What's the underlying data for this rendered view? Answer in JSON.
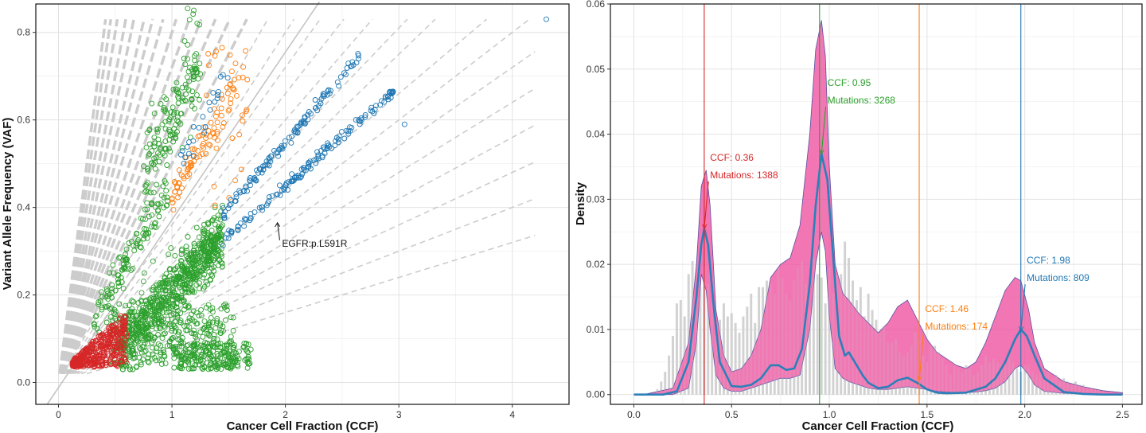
{
  "colors": {
    "clone_red": "#d62728",
    "clone_green": "#2ca02c",
    "clone_orange": "#ff7f0e",
    "clone_blue": "#1f77b4",
    "density_fill": "#ee4f9f",
    "density_line": "#2c7fb8",
    "histogram": "#c8c8c8",
    "guide_lines": "#cccccc"
  },
  "chart_data": [
    {
      "type": "scatter",
      "xlabel": "Cancer Cell Fraction (CCF)",
      "ylabel": "Variant Allele Frequency (VAF)",
      "xlim": [
        -0.2,
        4.5
      ],
      "ylim": [
        -0.05,
        0.865
      ],
      "x_ticks": [
        0,
        1,
        2,
        3,
        4
      ],
      "y_ticks": [
        0.0,
        0.2,
        0.4,
        0.6,
        0.8
      ],
      "x_tick_labels": [
        "0",
        "1",
        "2",
        "3",
        "4"
      ],
      "y_tick_labels": [
        "0.0",
        "0.2",
        "0.4",
        "0.6",
        "0.8"
      ],
      "grid": true,
      "identity_line": {
        "x": [
          -0.1,
          2.3
        ],
        "y": [
          -0.05,
          0.87
        ]
      },
      "guide_line_slopes": [
        0.08,
        0.1,
        0.12,
        0.14,
        0.16,
        0.18,
        0.2,
        0.22,
        0.25,
        0.27,
        0.3,
        0.33,
        0.36,
        0.4,
        0.45,
        0.5,
        0.55,
        0.6,
        0.66,
        0.72,
        0.8,
        0.9,
        1.0,
        1.1,
        1.25,
        1.4,
        1.6,
        1.8,
        2.0
      ],
      "clusters": [
        {
          "color": "clone_red",
          "ccf_range": [
            0.1,
            0.6
          ],
          "vaf_range": [
            0.03,
            0.15
          ]
        },
        {
          "color": "clone_green",
          "ccf_range": [
            0.4,
            1.7
          ],
          "vaf_range": [
            0.03,
            0.75
          ]
        },
        {
          "color": "clone_orange",
          "ccf_range": [
            0.9,
            1.6
          ],
          "vaf_range": [
            0.25,
            0.77
          ]
        },
        {
          "color": "clone_blue",
          "ccf_range": [
            1.0,
            4.3
          ],
          "vaf_range": [
            0.3,
            0.83
          ]
        }
      ],
      "annotation": {
        "text": "EGFR:p.L591R",
        "x": 1.95,
        "y": 0.36
      }
    },
    {
      "type": "area",
      "xlabel": "Cancer Cell Fraction (CCF)",
      "ylabel": "Density",
      "xlim": [
        -0.12,
        2.6
      ],
      "ylim": [
        -0.0015,
        0.06
      ],
      "x_ticks": [
        0.0,
        0.5,
        1.0,
        1.5,
        2.0,
        2.5
      ],
      "y_ticks": [
        0.0,
        0.01,
        0.02,
        0.03,
        0.04,
        0.05,
        0.06
      ],
      "x_tick_labels": [
        "0.0",
        "0.5",
        "1.0",
        "1.5",
        "2.0",
        "2.5"
      ],
      "y_tick_labels": [
        "0.00",
        "0.01",
        "0.02",
        "0.03",
        "0.04",
        "0.05",
        "0.06"
      ],
      "grid": true,
      "density_upper": {
        "x": [
          0.05,
          0.2,
          0.28,
          0.32,
          0.345,
          0.37,
          0.39,
          0.42,
          0.46,
          0.5,
          0.55,
          0.6,
          0.65,
          0.7,
          0.75,
          0.8,
          0.85,
          0.9,
          0.93,
          0.96,
          0.98,
          1.0,
          1.03,
          1.07,
          1.1,
          1.15,
          1.2,
          1.25,
          1.3,
          1.35,
          1.4,
          1.45,
          1.5,
          1.55,
          1.6,
          1.65,
          1.7,
          1.75,
          1.8,
          1.85,
          1.9,
          1.95,
          1.98,
          2.02,
          2.05,
          2.1,
          2.2,
          2.3,
          2.4,
          2.5
        ],
        "y": [
          0.0,
          0.001,
          0.008,
          0.02,
          0.032,
          0.0345,
          0.029,
          0.013,
          0.006,
          0.0035,
          0.004,
          0.006,
          0.01,
          0.018,
          0.02,
          0.021,
          0.026,
          0.04,
          0.053,
          0.0575,
          0.052,
          0.035,
          0.02,
          0.0155,
          0.0145,
          0.0125,
          0.011,
          0.0095,
          0.011,
          0.0135,
          0.0145,
          0.0115,
          0.0085,
          0.0065,
          0.0055,
          0.0045,
          0.004,
          0.005,
          0.008,
          0.012,
          0.016,
          0.018,
          0.0175,
          0.013,
          0.008,
          0.004,
          0.002,
          0.0012,
          0.0006,
          0.0003
        ]
      },
      "density_lower": {
        "x": [
          0.05,
          0.2,
          0.28,
          0.32,
          0.345,
          0.37,
          0.39,
          0.42,
          0.46,
          0.5,
          0.55,
          0.6,
          0.65,
          0.7,
          0.75,
          0.8,
          0.85,
          0.9,
          0.93,
          0.96,
          0.98,
          1.0,
          1.03,
          1.07,
          1.1,
          1.15,
          1.2,
          1.25,
          1.3,
          1.35,
          1.4,
          1.45,
          1.5,
          1.55,
          1.6,
          1.65,
          1.7,
          1.75,
          1.8,
          1.85,
          1.9,
          1.95,
          1.98,
          2.02,
          2.05,
          2.1,
          2.2,
          2.3,
          2.4,
          2.5
        ],
        "y": [
          0.0,
          0.0,
          0.001,
          0.008,
          0.0185,
          0.016,
          0.01,
          0.003,
          0.001,
          0.0005,
          0.0005,
          0.001,
          0.0015,
          0.002,
          0.0025,
          0.0025,
          0.003,
          0.01,
          0.02,
          0.025,
          0.022,
          0.012,
          0.004,
          0.0025,
          0.002,
          0.0015,
          0.001,
          0.0008,
          0.0008,
          0.001,
          0.0012,
          0.001,
          0.0008,
          0.0005,
          0.0004,
          0.0003,
          0.0003,
          0.0004,
          0.0006,
          0.001,
          0.002,
          0.004,
          0.0045,
          0.003,
          0.0015,
          0.0005,
          0.0002,
          0.0001,
          0.0,
          0.0
        ]
      },
      "density_line": {
        "x": [
          0.0,
          0.15,
          0.22,
          0.28,
          0.32,
          0.345,
          0.36,
          0.38,
          0.41,
          0.44,
          0.5,
          0.55,
          0.6,
          0.65,
          0.7,
          0.74,
          0.78,
          0.82,
          0.86,
          0.9,
          0.93,
          0.96,
          0.99,
          1.02,
          1.05,
          1.08,
          1.1,
          1.13,
          1.17,
          1.2,
          1.25,
          1.3,
          1.35,
          1.4,
          1.45,
          1.5,
          1.55,
          1.6,
          1.7,
          1.8,
          1.85,
          1.9,
          1.95,
          1.98,
          2.01,
          2.05,
          2.1,
          2.2,
          2.3,
          2.4,
          2.5
        ],
        "y": [
          0.0,
          0.0,
          0.0005,
          0.005,
          0.015,
          0.023,
          0.0255,
          0.023,
          0.013,
          0.005,
          0.0013,
          0.0012,
          0.0015,
          0.0025,
          0.0045,
          0.0045,
          0.0038,
          0.004,
          0.007,
          0.017,
          0.029,
          0.037,
          0.033,
          0.021,
          0.009,
          0.006,
          0.0065,
          0.005,
          0.003,
          0.0018,
          0.001,
          0.0012,
          0.0022,
          0.0026,
          0.0018,
          0.0008,
          0.0003,
          0.0002,
          0.0003,
          0.0012,
          0.0025,
          0.005,
          0.0085,
          0.01,
          0.009,
          0.006,
          0.0025,
          0.0004,
          0.0001,
          0.0,
          0.0
        ]
      },
      "histogram": {
        "bins": [
          0.12,
          0.14,
          0.16,
          0.18,
          0.2,
          0.22,
          0.24,
          0.26,
          0.28,
          0.3,
          0.32,
          0.34,
          0.36,
          0.38,
          0.4,
          0.42,
          0.44,
          0.46,
          0.48,
          0.5,
          0.52,
          0.54,
          0.56,
          0.58,
          0.6,
          0.62,
          0.64,
          0.66,
          0.68,
          0.7,
          0.72,
          0.74,
          0.76,
          0.78,
          0.8,
          0.82,
          0.84,
          0.86,
          0.88,
          0.9,
          0.92,
          0.94,
          0.96,
          0.98,
          1.0,
          1.02,
          1.04,
          1.06,
          1.08,
          1.1,
          1.12,
          1.14,
          1.16,
          1.18,
          1.2,
          1.22,
          1.24,
          1.26,
          1.28,
          1.3,
          1.32,
          1.34,
          1.36,
          1.38,
          1.4,
          1.42,
          1.44,
          1.46,
          1.48,
          1.5,
          1.52,
          1.54,
          1.56,
          1.58,
          1.6,
          1.62,
          1.64,
          1.66,
          1.68,
          1.7,
          1.72,
          1.74,
          1.76,
          1.78,
          1.8,
          1.82,
          1.84,
          1.86,
          1.88,
          1.9,
          1.92,
          1.94,
          1.96,
          1.98,
          2.0,
          2.02,
          2.04,
          2.06,
          2.08,
          2.1,
          2.12,
          2.14,
          2.16,
          2.18,
          2.2,
          2.22,
          2.24,
          2.26,
          2.28,
          2.3,
          2.32,
          2.34,
          2.36,
          2.38,
          2.4
        ],
        "heights": [
          0.0008,
          0.002,
          0.0035,
          0.006,
          0.009,
          0.014,
          0.0145,
          0.012,
          0.0185,
          0.0205,
          0.015,
          0.0165,
          0.0195,
          0.017,
          0.014,
          0.0105,
          0.0115,
          0.014,
          0.012,
          0.0125,
          0.011,
          0.0095,
          0.012,
          0.0135,
          0.0155,
          0.011,
          0.0165,
          0.0165,
          0.0175,
          0.017,
          0.0155,
          0.0195,
          0.018,
          0.0155,
          0.0145,
          0.0175,
          0.0195,
          0.0205,
          0.017,
          0.013,
          0.021,
          0.0185,
          0.018,
          0.014,
          0.0195,
          0.0155,
          0.0185,
          0.0185,
          0.0235,
          0.021,
          0.0175,
          0.0145,
          0.0165,
          0.012,
          0.0155,
          0.013,
          0.0115,
          0.0095,
          0.0105,
          0.008,
          0.008,
          0.0085,
          0.0065,
          0.006,
          0.0065,
          0.0075,
          0.0095,
          0.0085,
          0.006,
          0.005,
          0.0075,
          0.0075,
          0.0065,
          0.0055,
          0.0045,
          0.003,
          0.0045,
          0.004,
          0.0035,
          0.0045,
          0.004,
          0.003,
          0.0035,
          0.0045,
          0.006,
          0.005,
          0.0055,
          0.005,
          0.0045,
          0.0045,
          0.0055,
          0.005,
          0.004,
          0.0035,
          0.0045,
          0.0045,
          0.0035,
          0.003,
          0.0035,
          0.003,
          0.0035,
          0.0025,
          0.003,
          0.002,
          0.0025,
          0.002,
          0.0015,
          0.002,
          0.0015,
          0.0015,
          0.001,
          0.001,
          0.0008,
          0.0008,
          0.0005
        ]
      },
      "vlines": [
        {
          "x": 0.36,
          "color": "clone_red"
        },
        {
          "x": 0.95,
          "color": "clone_green"
        },
        {
          "x": 1.46,
          "color": "clone_orange"
        },
        {
          "x": 1.98,
          "color": "clone_blue"
        }
      ],
      "annotations": [
        {
          "color": "clone_red",
          "ccf_label": "CCF: 0.36",
          "mut_label": "Mutations: 1388",
          "point": {
            "x": 0.36,
            "y": 0.0255
          },
          "text_at": {
            "x": 0.39,
            "y": 0.032
          }
        },
        {
          "color": "clone_green",
          "ccf_label": "CCF: 0.95",
          "mut_label": "Mutations: 3268",
          "point": {
            "x": 0.96,
            "y": 0.037
          },
          "text_at": {
            "x": 0.99,
            "y": 0.0435
          }
        },
        {
          "color": "clone_orange",
          "ccf_label": "CCF: 1.46",
          "mut_label": "Mutations: 174",
          "point": {
            "x": 1.46,
            "y": 0.0022
          },
          "text_at": {
            "x": 1.49,
            "y": 0.0088
          }
        },
        {
          "color": "clone_blue",
          "ccf_label": "CCF: 1.98",
          "mut_label": "Mutations: 809",
          "point": {
            "x": 1.98,
            "y": 0.0098
          },
          "text_at": {
            "x": 2.01,
            "y": 0.0162
          }
        }
      ]
    }
  ]
}
